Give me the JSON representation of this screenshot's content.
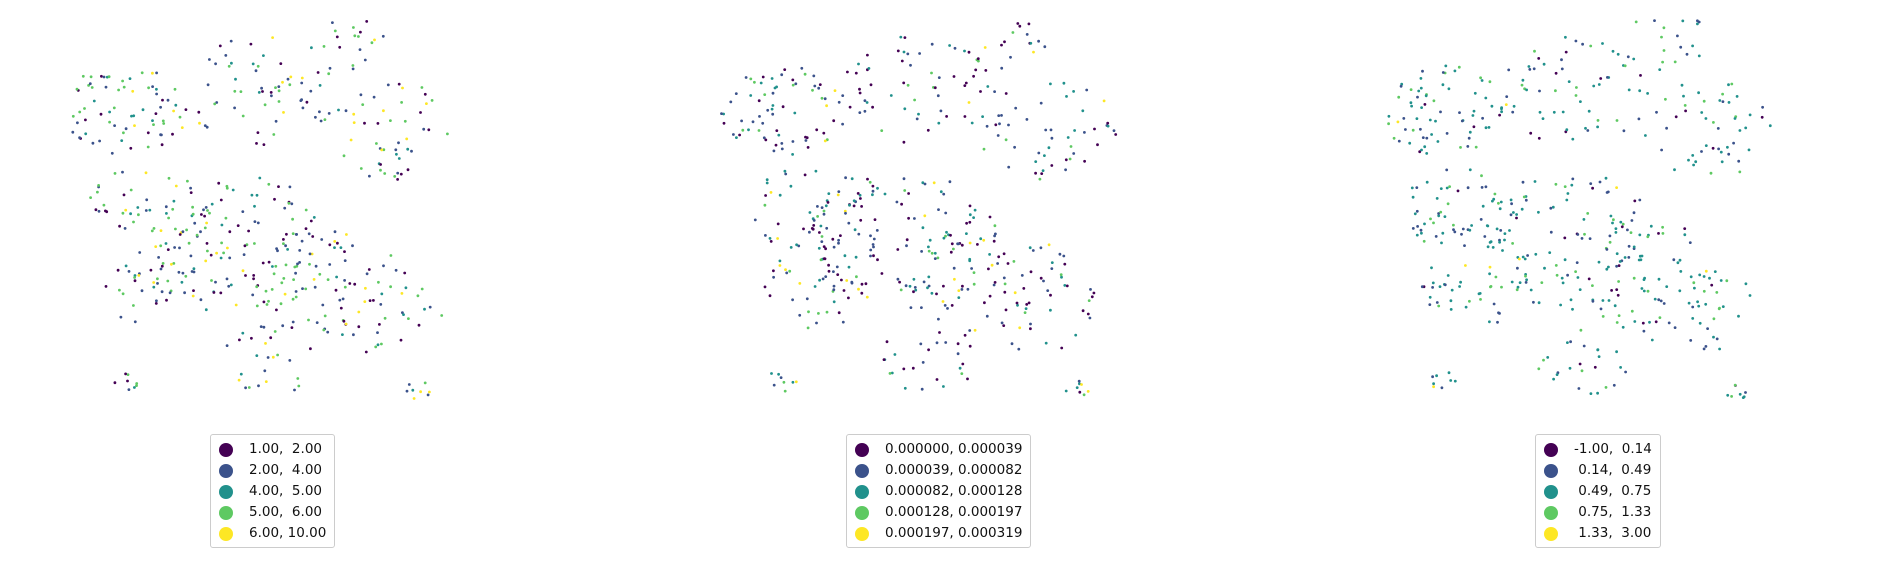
{
  "colors": {
    "class_1": "#440154",
    "class_2": "#3b528b",
    "class_3": "#21918c",
    "class_4": "#5ec962",
    "class_5": "#fde725"
  },
  "maps": [
    {
      "legend": [
        {
          "label": "1.00,  2.00",
          "color": "#440154"
        },
        {
          "label": "2.00,  4.00",
          "color": "#3b528b"
        },
        {
          "label": "4.00,  5.00",
          "color": "#21918c"
        },
        {
          "label": "5.00,  6.00",
          "color": "#5ec962"
        },
        {
          "label": "6.00, 10.00",
          "color": "#fde725"
        }
      ]
    },
    {
      "legend": [
        {
          "label": "0.000000, 0.000039",
          "color": "#440154"
        },
        {
          "label": "0.000039, 0.000082",
          "color": "#3b528b"
        },
        {
          "label": "0.000082, 0.000128",
          "color": "#21918c"
        },
        {
          "label": "0.000128, 0.000197",
          "color": "#5ec962"
        },
        {
          "label": "0.000197, 0.000319",
          "color": "#fde725"
        }
      ]
    },
    {
      "legend": [
        {
          "label": "-1.00,  0.14",
          "color": "#440154"
        },
        {
          "label": " 0.14,  0.49",
          "color": "#3b528b"
        },
        {
          "label": " 0.49,  0.75",
          "color": "#21918c"
        },
        {
          "label": " 0.75,  1.33",
          "color": "#5ec962"
        },
        {
          "label": " 1.33,  3.00",
          "color": "#fde725"
        }
      ]
    }
  ]
}
